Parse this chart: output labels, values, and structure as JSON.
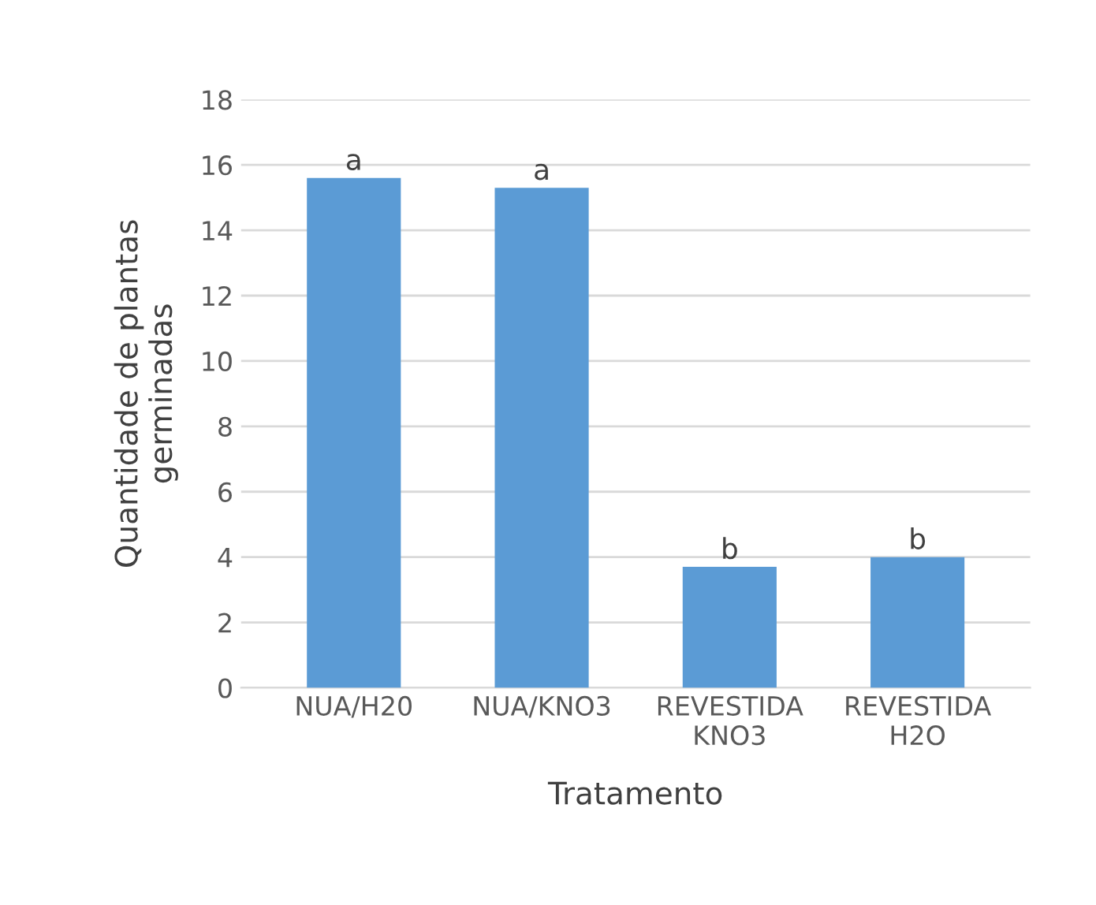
{
  "chart_data": {
    "type": "bar",
    "xlabel": "Tratamento",
    "ylabel": "Quantidade de plantas\ngerminadas",
    "categories": [
      "NUA/H20",
      "NUA/KNO3",
      "REVESTIDA\nKNO3",
      "REVESTIDA\nH2O"
    ],
    "values": [
      15.6,
      15.3,
      3.7,
      4.0
    ],
    "color": "#5b9bd5",
    "ylim": [
      0,
      18
    ],
    "yticks": [
      0,
      2,
      4,
      6,
      8,
      10,
      12,
      14,
      16,
      18
    ],
    "grid": "y",
    "annotations": [
      {
        "text": "a",
        "x": "NUA/H20",
        "y": 15.6
      },
      {
        "text": "a",
        "x": "NUA/KNO3",
        "y": 15.3
      },
      {
        "text": "b",
        "x": "REVESTIDA\nKNO3",
        "y": 3.7
      },
      {
        "text": "b",
        "x": "REVESTIDA\nH2O",
        "y": 4.0
      }
    ]
  }
}
